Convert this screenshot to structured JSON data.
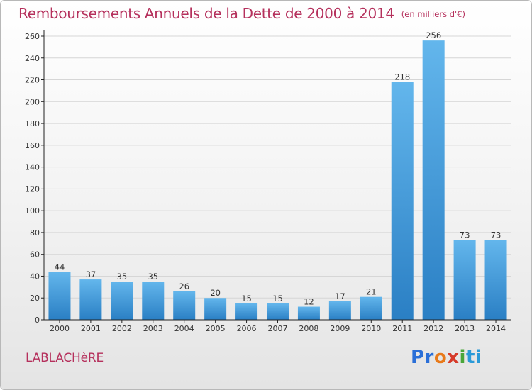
{
  "title": "Remboursements Annuels de la Dette de 2000 à 2014",
  "unit": "(en milliers d'€)",
  "commune": "LABLACHèRE",
  "logo": {
    "p": "Pr",
    "o": "o",
    "x": "x",
    "i": "i",
    "ti": "ti"
  },
  "colors": {
    "title": "#b5305c",
    "bar_light": "#63b6ec",
    "bar_dark": "#2a7fc4",
    "axis": "#222222",
    "grid": "#d6d6d6"
  },
  "chart_data": {
    "type": "bar",
    "title": "Remboursements Annuels de la Dette de 2000 à 2014",
    "xlabel": "",
    "ylabel": "",
    "categories": [
      "2000",
      "2001",
      "2002",
      "2003",
      "2004",
      "2005",
      "2006",
      "2007",
      "2008",
      "2009",
      "2010",
      "2011",
      "2012",
      "2013",
      "2014"
    ],
    "values": [
      44,
      37,
      35,
      35,
      26,
      20,
      15,
      15,
      12,
      17,
      21,
      218,
      256,
      73,
      73
    ],
    "ylim": [
      0,
      260
    ],
    "yticks": [
      0,
      20,
      40,
      60,
      80,
      100,
      120,
      140,
      160,
      180,
      200,
      220,
      240,
      260
    ],
    "grid": true
  }
}
